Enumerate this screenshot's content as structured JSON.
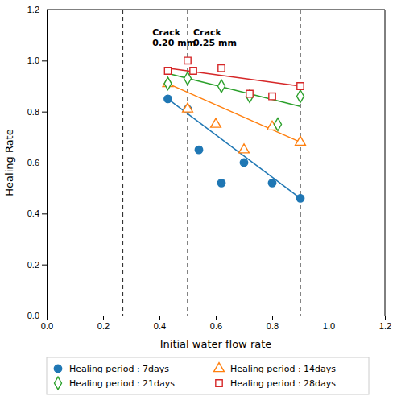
{
  "chart_data": {
    "type": "scatter",
    "xlabel": "Initial water flow rate",
    "ylabel": "Healing Rate",
    "xlim": [
      0.0,
      1.2
    ],
    "ylim": [
      0.0,
      1.2
    ],
    "xticks": [
      {
        "value": 0.0,
        "label": "0.0"
      },
      0.2,
      0.4,
      0.6,
      0.8,
      {
        "value": 1.0,
        "label": "1.0"
      },
      1.2
    ],
    "yticks": [
      {
        "value": 0.0,
        "label": "0.0"
      },
      0.2,
      0.4,
      0.6,
      0.8,
      {
        "value": 1.0,
        "label": "1.0"
      },
      1.2
    ],
    "vlines": [
      0.27,
      0.5,
      0.9
    ],
    "annotations": [
      {
        "text": "Crack\n0.20 mm",
        "x": 0.375,
        "y": 1.13
      },
      {
        "text": "Crack\n0.25 mm",
        "x": 0.52,
        "y": 1.13
      }
    ],
    "legend": "lower left",
    "series": [
      {
        "name": "Healing period : 7days",
        "marker": "circle",
        "x": [
          0.43,
          0.5,
          0.54,
          0.62,
          0.7,
          0.8,
          0.9
        ],
        "values": [
          0.85,
          0.81,
          0.65,
          0.52,
          0.6,
          0.52,
          0.46
        ],
        "trend_x": [
          0.43,
          0.9
        ],
        "trend_values": [
          0.85,
          0.46
        ]
      },
      {
        "name": "Healing period : 14days",
        "marker": "triangle-open",
        "x": [
          0.43,
          0.5,
          0.6,
          0.7,
          0.8,
          0.9
        ],
        "values": [
          0.91,
          0.81,
          0.75,
          0.65,
          0.74,
          0.68
        ],
        "trend_x": [
          0.43,
          0.9
        ],
        "trend_values": [
          0.91,
          0.68
        ]
      },
      {
        "name": "Healing period : 21days",
        "marker": "diamond-open",
        "x": [
          0.43,
          0.5,
          0.62,
          0.72,
          0.82,
          0.9
        ],
        "values": [
          0.91,
          0.93,
          0.9,
          0.86,
          0.75,
          0.86
        ],
        "trend_x": [
          0.43,
          0.9
        ],
        "trend_values": [
          0.95,
          0.82
        ]
      },
      {
        "name": "Healing period : 28days",
        "marker": "square-open",
        "x": [
          0.43,
          0.5,
          0.52,
          0.62,
          0.72,
          0.8,
          0.9
        ],
        "values": [
          0.96,
          1.0,
          0.96,
          0.97,
          0.87,
          0.86,
          0.9
        ],
        "trend_x": [
          0.43,
          0.9
        ],
        "trend_values": [
          0.97,
          0.9
        ]
      }
    ]
  }
}
